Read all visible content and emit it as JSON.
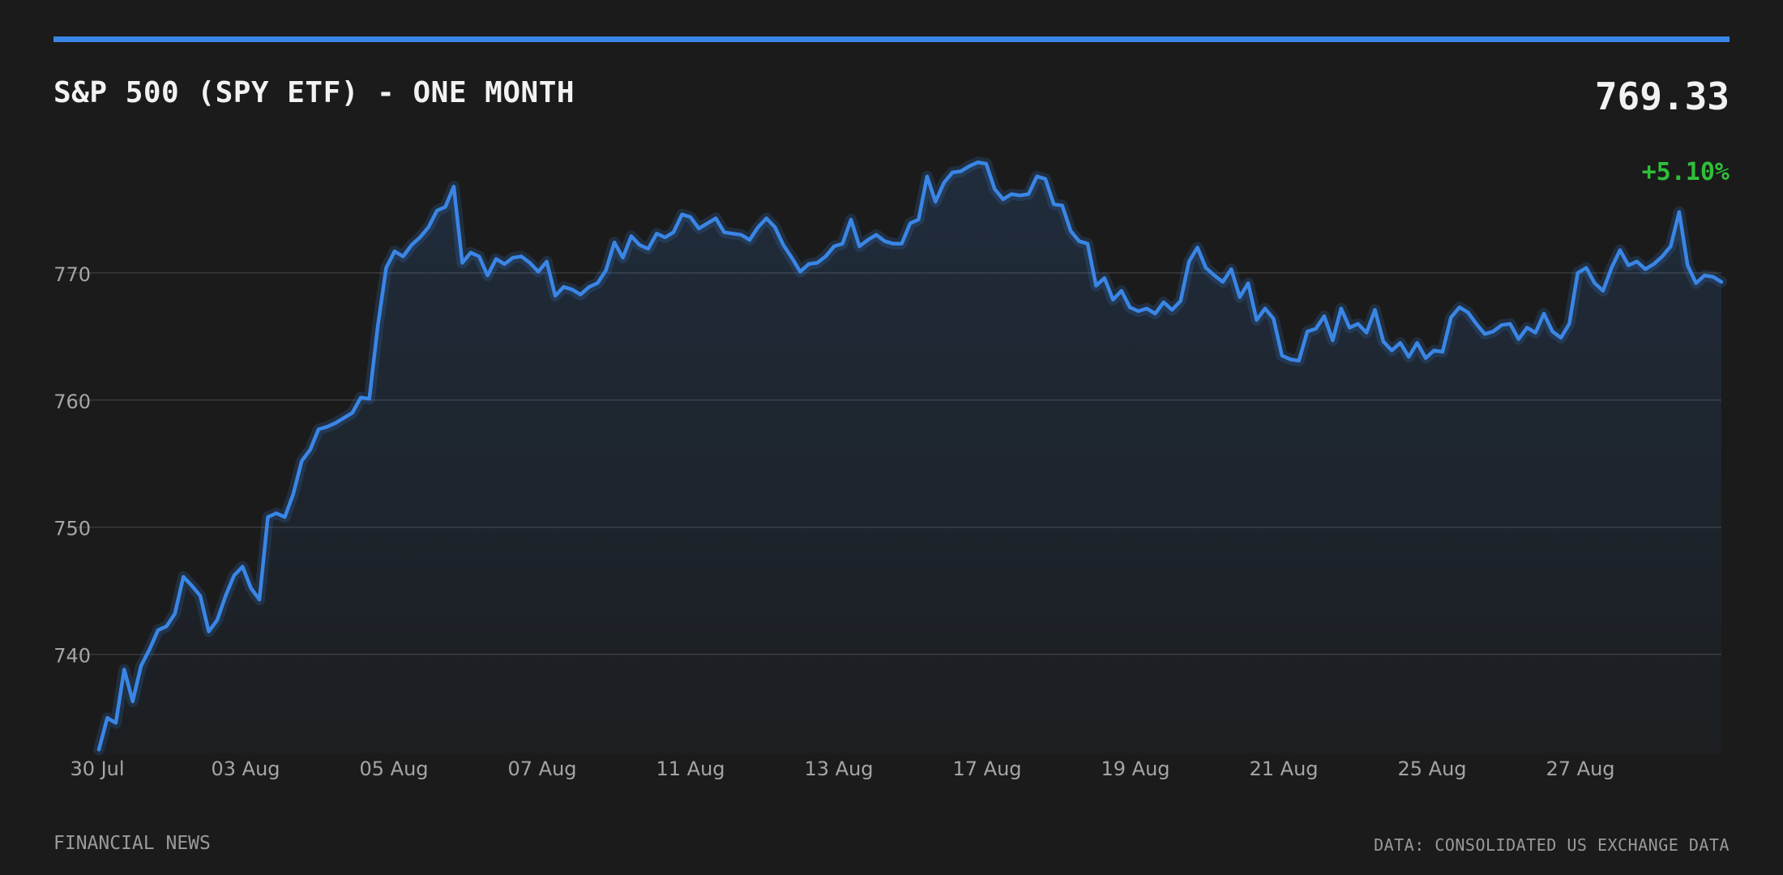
{
  "header": {
    "title": "S&P 500 (SPY ETF) - ONE MONTH",
    "price": "769.33",
    "change": "+5.10%"
  },
  "footer": {
    "source_left": "FINANCIAL NEWS",
    "source_right": "DATA: CONSOLIDATED US EXCHANGE DATA"
  },
  "colors": {
    "background": "#1b1b1b",
    "accent": "#3a86e6",
    "line": "#3a86e6",
    "positive": "#2fbf3a",
    "grid": "#3a3a3a",
    "tick_text": "#a5a5a5"
  },
  "chart_data": {
    "type": "area",
    "title": "S&P 500 (SPY ETF) - ONE MONTH",
    "xlabel": "",
    "ylabel": "",
    "ylim": [
      732.2,
      780.0
    ],
    "yticks": [
      740,
      750,
      760,
      770
    ],
    "ytick_labels": [
      "740",
      "750",
      "760",
      "770"
    ],
    "grid": true,
    "xtick_labels": [
      "30 Jul",
      "03 Aug",
      "05 Aug",
      "07 Aug",
      "11 Aug",
      "13 Aug",
      "17 Aug",
      "19 Aug",
      "21 Aug",
      "25 Aug",
      "27 Aug"
    ],
    "series": [
      {
        "values": [
          732.5,
          735,
          734.6,
          738.8,
          736.3,
          739.1,
          740.4,
          741.9,
          742.2,
          743.2,
          746.1,
          745.4,
          744.6,
          741.8,
          742.7,
          744.6,
          746.2,
          746.9,
          745.2,
          744.3,
          750.8,
          751.1,
          750.8,
          752.6,
          755.2,
          756.1,
          757.7,
          757.9,
          758.2,
          758.6,
          759.0,
          760.2,
          760.1,
          765.8,
          770.4,
          771.7,
          771.3,
          772.2,
          772.8,
          773.6,
          774.9,
          775.2,
          776.8,
          770.8,
          771.6,
          771.3,
          769.8,
          771.1,
          770.7,
          771.2,
          771.3,
          770.8,
          770.1,
          770.9,
          768.2,
          768.9,
          768.7,
          768.3,
          768.9,
          769.2,
          770.2,
          772.4,
          771.2,
          772.9,
          772.2,
          771.9,
          773.1,
          772.8,
          773.2,
          774.6,
          774.4,
          773.5,
          773.9,
          774.3,
          773.2,
          773.1,
          773.0,
          772.6,
          773.6,
          774.3,
          773.6,
          772.2,
          771.2,
          770.1,
          770.7,
          770.8,
          771.3,
          772.1,
          772.3,
          774.2,
          772.1,
          772.6,
          773.0,
          772.5,
          772.3,
          772.3,
          773.9,
          774.2,
          777.6,
          775.6,
          777.1,
          777.9,
          778.0,
          778.4,
          778.7,
          778.6,
          776.6,
          775.8,
          776.2,
          776.1,
          776.2,
          777.6,
          777.4,
          775.4,
          775.3,
          773.3,
          772.5,
          772.3,
          769.0,
          769.6,
          767.9,
          768.6,
          767.3,
          767.0,
          767.2,
          766.8,
          767.7,
          767.1,
          767.8,
          770.9,
          772.0,
          770.4,
          769.8,
          769.3,
          770.3,
          768.1,
          769.2,
          766.3,
          767.2,
          766.4,
          763.5,
          763.2,
          763.1,
          765.4,
          765.6,
          766.6,
          764.7,
          767.2,
          765.7,
          766.0,
          765.3,
          767.1,
          764.6,
          763.9,
          764.5,
          763.4,
          764.5,
          763.3,
          763.9,
          763.8,
          766.5,
          767.3,
          766.9,
          766.0,
          765.2,
          765.4,
          765.9,
          766.0,
          764.8,
          765.7,
          765.3,
          766.8,
          765.4,
          764.9,
          766.0,
          770.0,
          770.4,
          769.2,
          768.6,
          770.4,
          771.8,
          770.6,
          770.9,
          770.3,
          770.7,
          771.3,
          772.1,
          774.8,
          770.6,
          769.2,
          769.8,
          769.7,
          769.3
        ],
        "color": "#3a86e6"
      }
    ]
  }
}
